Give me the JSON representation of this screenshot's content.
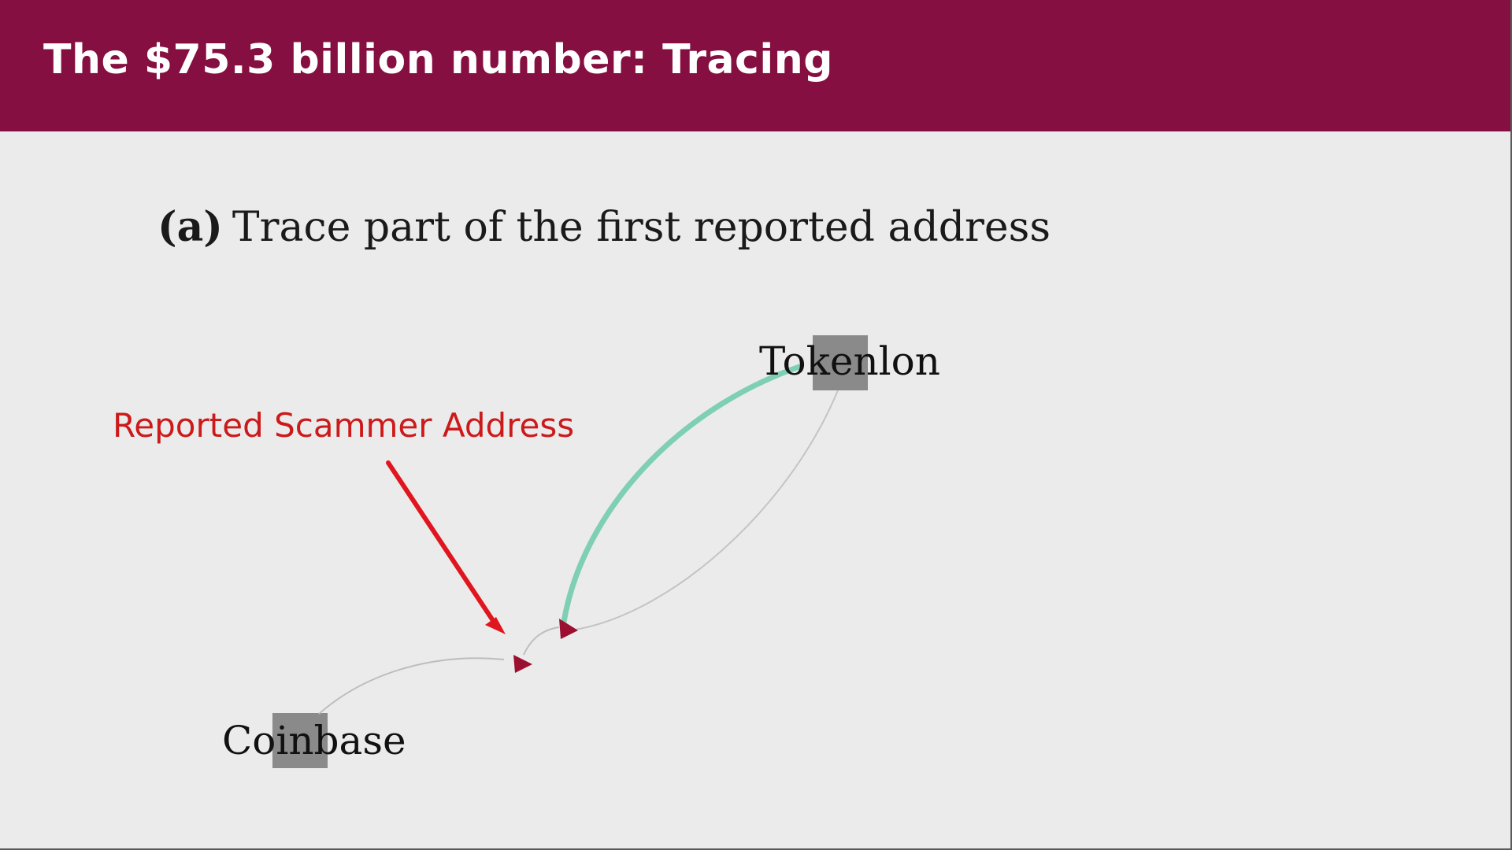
{
  "slide": {
    "title": "The $75.3 billion number: Tracing",
    "subfigure": {
      "tag": "(a)",
      "caption": "Trace part of the first reported address"
    }
  },
  "diagram": {
    "nodes": [
      {
        "id": "tokenlon",
        "label": "Tokenlon"
      },
      {
        "id": "coinbase",
        "label": "Coinbase"
      },
      {
        "id": "scammer",
        "label": ""
      }
    ],
    "edges": [
      {
        "from": "tokenlon",
        "to": "scammer",
        "style": "thick",
        "color": "#7ecfb4"
      },
      {
        "from": "scammer",
        "to": "tokenlon",
        "style": "thin",
        "color": "#bdbdbd"
      },
      {
        "from": "coinbase",
        "to": "scammer",
        "style": "thin",
        "color": "#bdbdbd"
      }
    ],
    "callout": {
      "label": "Reported Scammer Address",
      "color": "#cc1a1a"
    },
    "node_marker_color": "#8a8a8a",
    "arrowhead_color": "#9b1030"
  }
}
